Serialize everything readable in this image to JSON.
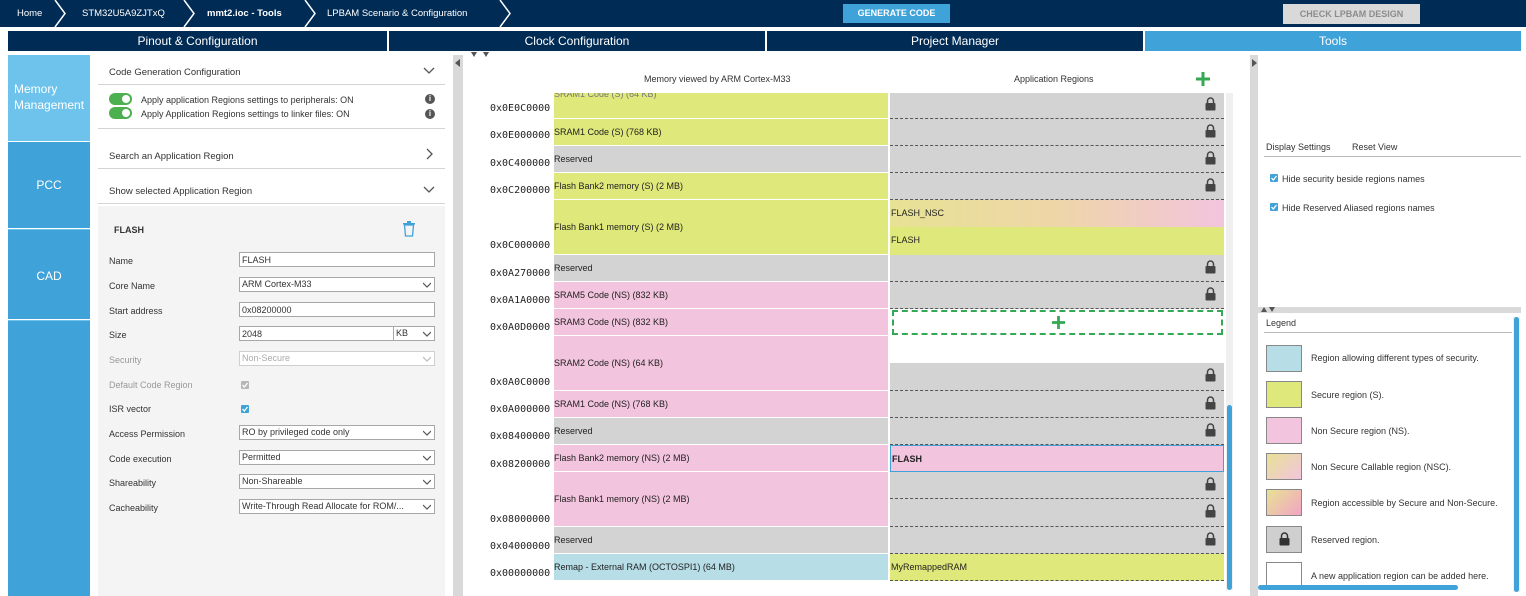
{
  "breadcrumb": {
    "items": [
      "Home",
      "STM32U5A9ZJTxQ",
      "mmt2.ioc - Tools",
      "LPBAM Scenario & Configuration"
    ],
    "generate_label": "GENERATE CODE",
    "check_label": "CHECK LPBAM DESIGN"
  },
  "tabs": [
    "Pinout & Configuration",
    "Clock Configuration",
    "Project Manager",
    "Tools"
  ],
  "nav": [
    "Memory Management",
    "PCC",
    "CAD"
  ],
  "left": {
    "code_gen_title": "Code Generation Configuration",
    "toggle1": "Apply application Regions settings to peripherals: ON",
    "toggle2": "Apply Application Regions settings to linker files: ON",
    "search_title": "Search an Application Region",
    "show_title": "Show selected Application Region",
    "region_title": "FLASH",
    "labels": {
      "name": "Name",
      "core": "Core Name",
      "start": "Start address",
      "size": "Size",
      "security": "Security",
      "default_code": "Default Code Region",
      "isr": "ISR vector",
      "access": "Access Permission",
      "exec": "Code execution",
      "share": "Shareability",
      "cache": "Cacheability"
    },
    "values": {
      "name": "FLASH",
      "core": "ARM Cortex-M33",
      "start": "0x08200000",
      "size": "2048",
      "size_unit": "KB",
      "security": "Non-Secure",
      "access": "RO by privileged code only",
      "exec": "Permitted",
      "share": "Non-Shareable",
      "cache": "Write-Through Read Allocate for ROM/..."
    }
  },
  "center": {
    "col1": "Memory viewed by ARM Cortex-M33",
    "col2": "Application Regions",
    "addresses": [
      "0x0E0C0000",
      "0x0E000000",
      "0x0C400000",
      "0x0C200000",
      "0x0C000000",
      "0x0A270000",
      "0x0A1A0000",
      "0x0A0D0000",
      "0x0A0C0000",
      "0x0A000000",
      "0x08400000",
      "0x08200000",
      "0x08000000",
      "0x04000000",
      "0x00000000"
    ],
    "memory": [
      {
        "label": "SRAM1 Code (S) (768 KB)"
      },
      {
        "label": "Reserved"
      },
      {
        "label": "Flash Bank2 memory (S) (2 MB)"
      },
      {
        "label": "Flash Bank1 memory (S) (2 MB)"
      },
      {
        "label": "Reserved"
      },
      {
        "label": "SRAM5 Code (NS) (832 KB)"
      },
      {
        "label": "SRAM3 Code (NS) (832 KB)"
      },
      {
        "label": "SRAM2 Code (NS) (64 KB)"
      },
      {
        "label": "SRAM1 Code (NS) (768 KB)"
      },
      {
        "label": "Reserved"
      },
      {
        "label": "Flash Bank2 memory (NS) (2 MB)"
      },
      {
        "label": "Flash Bank1 memory (NS) (2 MB)"
      },
      {
        "label": "Reserved"
      },
      {
        "label": "Remap - External RAM (OCTOSPI1) (64 MB)"
      }
    ],
    "app_regions": {
      "flash_nsc": "FLASH_NSC",
      "flash_s": "FLASH",
      "flash_ns": "FLASH",
      "remapped": "MyRemappedRAM"
    }
  },
  "right": {
    "display_settings": "Display Settings",
    "reset_view": "Reset View",
    "opt1": "Hide security beside regions names",
    "opt2": "Hide Reserved Aliased regions names",
    "legend_title": "Legend",
    "legend": [
      {
        "text": "Region allowing different types of security.",
        "color": "#b7dde7"
      },
      {
        "text": "Secure region (S).",
        "color": "#dfe87a"
      },
      {
        "text": "Non Secure region (NS).",
        "color": "#f3c4de"
      },
      {
        "text": "Non Secure Callable region (NSC).",
        "color": "#eed6a8"
      },
      {
        "text": "Region accessible by Secure and Non-Secure.",
        "color": "#eec2c2"
      },
      {
        "text": "Reserved region.",
        "color": "#cfcfcf"
      },
      {
        "text": "A new application region can be added here.",
        "color": "#ffffff"
      }
    ]
  },
  "colors": {
    "navy": "#002b55",
    "accent": "#3fa2d8",
    "secure": "#dfe87a",
    "nonsecure": "#f3c4de",
    "reserved": "#d3d3d3",
    "remap": "#b7dde7",
    "add_green": "#34a853"
  }
}
